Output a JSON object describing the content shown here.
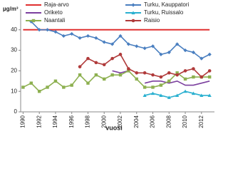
{
  "chart_data": {
    "type": "line",
    "y_label": "µg/m³",
    "x_label": "vuosi",
    "x": [
      1990,
      1991,
      1992,
      1993,
      1994,
      1995,
      1996,
      1997,
      1998,
      1999,
      2000,
      2001,
      2002,
      2003,
      2004,
      2005,
      2006,
      2007,
      2008,
      2009,
      2010,
      2011,
      2012,
      2013
    ],
    "xlim": [
      1989.7,
      2013.6
    ],
    "xticks": [
      1990,
      1992,
      1994,
      1996,
      1998,
      2000,
      2002,
      2004,
      2006,
      2008,
      2010,
      2012
    ],
    "ylim": [
      0,
      50
    ],
    "yticks": [
      0,
      10,
      20,
      30,
      40
    ],
    "series": [
      {
        "name": "Raja-arvo",
        "color": "#e03030",
        "marker": "none",
        "values": [
          40,
          40,
          40,
          40,
          40,
          40,
          40,
          40,
          40,
          40,
          40,
          40,
          40,
          40,
          40,
          40,
          40,
          40,
          40,
          40,
          40,
          40,
          40,
          40
        ]
      },
      {
        "name": "Turku, Kauppatori",
        "color": "#4a7fc0",
        "marker": "diamond",
        "values": [
          null,
          44,
          40,
          40,
          39,
          37,
          38,
          36,
          37,
          36,
          34,
          33,
          37,
          33,
          32,
          31,
          32,
          28,
          29,
          33,
          30,
          29,
          26,
          28
        ]
      },
      {
        "name": "Oriketo",
        "color": "#7b3f9e",
        "marker": "none",
        "values": [
          null,
          null,
          null,
          null,
          null,
          null,
          null,
          null,
          null,
          null,
          null,
          20,
          19,
          20,
          null,
          14,
          15,
          15,
          14,
          15,
          13,
          13,
          14,
          15
        ]
      },
      {
        "name": "Turku, Ruissalo",
        "color": "#2ab0d0",
        "marker": "triangle",
        "values": [
          null,
          null,
          null,
          null,
          null,
          null,
          null,
          null,
          null,
          null,
          null,
          null,
          null,
          null,
          null,
          8,
          9,
          8,
          7,
          8,
          10,
          9,
          8,
          8
        ]
      },
      {
        "name": "Naantali",
        "color": "#8db050",
        "marker": "square",
        "values": [
          12,
          14,
          10,
          12,
          15,
          12,
          13,
          18,
          14,
          18,
          16,
          18,
          18,
          20,
          16,
          12,
          12,
          13,
          15,
          19,
          16,
          17,
          17,
          17
        ]
      },
      {
        "name": "Raisio",
        "color": "#b03a3a",
        "marker": "circle",
        "values": [
          null,
          null,
          null,
          null,
          null,
          null,
          null,
          22,
          26,
          24,
          23,
          26,
          28,
          21,
          19,
          19,
          18,
          17,
          19,
          18,
          20,
          21,
          17,
          20
        ]
      }
    ]
  }
}
